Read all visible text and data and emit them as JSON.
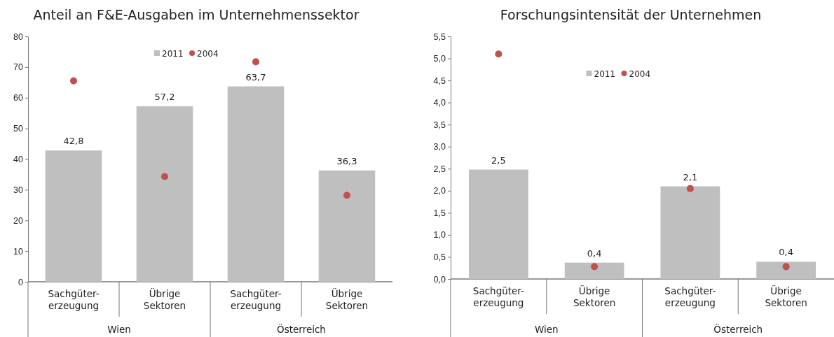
{
  "chart_data": [
    {
      "type": "bar",
      "title": "Anteil an F&E-Ausgaben im Unternehmenssektor",
      "categories": [
        "Sachgüter-erzeugung",
        "Übrige Sektoren",
        "Sachgüter-erzeugung",
        "Übrige Sektoren"
      ],
      "annotations": [
        "Wien",
        "Österreich"
      ],
      "series": [
        {
          "name": "2011",
          "color": "#bfbfbf",
          "values": [
            42.8,
            57.2,
            63.7,
            36.3
          ],
          "value_labels": [
            "42,8",
            "57,2",
            "63,7",
            "36,3"
          ]
        },
        {
          "name": "2004",
          "type": "scatter",
          "color": "#c0504d",
          "values": [
            65.5,
            34.3,
            71.7,
            28.2
          ]
        }
      ],
      "ylim": [
        0,
        80
      ],
      "yticks": [
        0,
        10,
        20,
        30,
        40,
        50,
        60,
        70,
        80
      ],
      "legend": "top",
      "marker": "circle",
      "grid": false
    },
    {
      "type": "bar",
      "title": "Forschungsintensität der Unternehmen",
      "categories": [
        "Sachgüter-erzeugung",
        "Übrige Sektoren",
        "Sachgüter-erzeugung",
        "Übrige Sektoren"
      ],
      "annotations": [
        "Wien",
        "Österreich"
      ],
      "series": [
        {
          "name": "2011",
          "color": "#bfbfbf",
          "values": [
            2.48,
            0.37,
            2.1,
            0.39
          ],
          "value_labels": [
            "2,5",
            "0,4",
            "2,1",
            "0,4"
          ]
        },
        {
          "name": "2004",
          "type": "scatter",
          "color": "#c0504d",
          "values": [
            5.1,
            0.28,
            2.05,
            0.28
          ]
        }
      ],
      "ylim": [
        0,
        5.5
      ],
      "yticks": [
        {
          "value": 0,
          "label": "0,0"
        },
        {
          "value": 0.5,
          "label": "0,5"
        },
        {
          "value": 1,
          "label": "1,0"
        },
        {
          "value": 1.5,
          "label": "1,5"
        },
        {
          "value": 2,
          "label": "2,0"
        },
        {
          "value": 2.5,
          "label": "2,5"
        },
        {
          "value": 3,
          "label": "3,0"
        },
        {
          "value": 3.5,
          "label": "3,5"
        },
        {
          "value": 4,
          "label": "4,0"
        },
        {
          "value": 4.5,
          "label": "4,5"
        },
        {
          "value": 5,
          "label": "5,0"
        },
        {
          "value": 5.5,
          "label": "5,5"
        }
      ],
      "legend": "top",
      "marker": "circle",
      "grid": false
    }
  ]
}
